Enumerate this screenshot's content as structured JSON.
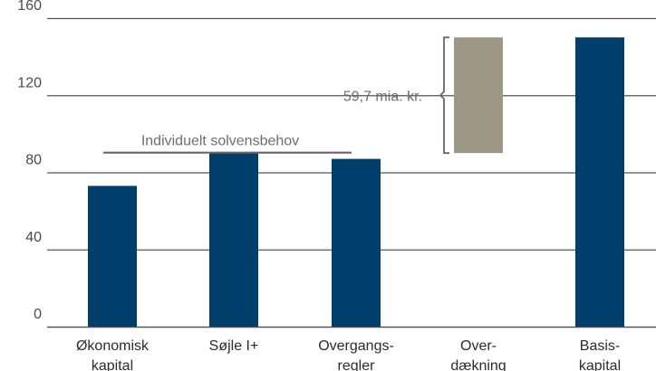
{
  "chart_data": {
    "type": "bar",
    "title": "",
    "xlabel": "",
    "ylabel": "",
    "ylim": [
      0,
      160
    ],
    "yticks": [
      0,
      40,
      80,
      120,
      160
    ],
    "grid": true,
    "categories": [
      [
        "Økonomisk",
        "kapital"
      ],
      [
        "Søjle I+"
      ],
      [
        "Overgangs-",
        "regler"
      ],
      [
        "Over-",
        "dækning"
      ],
      [
        "Basis-",
        "kapital"
      ]
    ],
    "bars": [
      {
        "base": 0,
        "value": 73,
        "color": "#003e6b"
      },
      {
        "base": 0,
        "value": 90,
        "color": "#003e6b"
      },
      {
        "base": 0,
        "value": 87,
        "color": "#003e6b"
      },
      {
        "base": 90,
        "value": 150,
        "color": "#9c9885"
      },
      {
        "base": 0,
        "value": 150,
        "color": "#003e6b"
      }
    ],
    "annotations": {
      "solvency_line": {
        "label": "Individuelt solvensbehov",
        "value": 90,
        "from_category": 0,
        "to_category": 2,
        "color": "#6d6170"
      },
      "surplus_brace": {
        "label": "59,7 mia. kr.",
        "from": 90,
        "to": 150,
        "category": 3,
        "color": "#6d6170"
      }
    },
    "colors": {
      "axis": "#555555",
      "grid": "#555555",
      "bar": "#003e6b",
      "overcover": "#9c9885"
    }
  }
}
